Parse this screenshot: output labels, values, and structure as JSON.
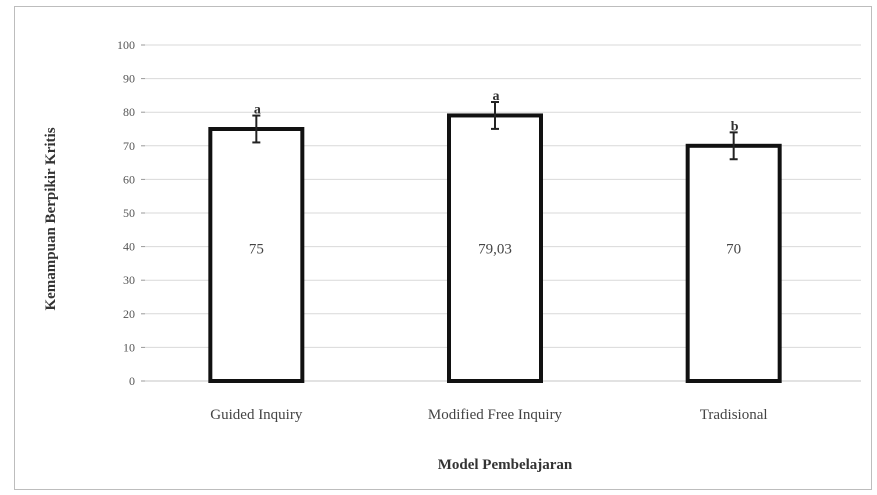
{
  "chart_data": {
    "type": "bar",
    "categories": [
      "Guided Inquiry",
      "Modified Free Inquiry",
      "Tradisional"
    ],
    "values": [
      75,
      79.03,
      70
    ],
    "value_labels": [
      "75",
      "79,03",
      "70"
    ],
    "error": [
      4,
      4,
      4
    ],
    "significance": [
      "a",
      "a",
      "b"
    ],
    "xlabel": "Model Pembelajaran",
    "ylabel": "Kemampuan Berpikir Kritis",
    "ylim": [
      0,
      100
    ],
    "yticks": [
      0,
      10,
      20,
      30,
      40,
      50,
      60,
      70,
      80,
      90,
      100
    ],
    "grid": true,
    "legend": "none",
    "colors": {
      "bar_fill": "#ffffff",
      "bar_stroke": "#111111",
      "grid": "#d9d9d9"
    }
  }
}
